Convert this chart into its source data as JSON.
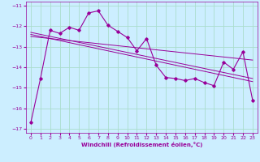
{
  "xlabel": "Windchill (Refroidissement éolien,°C)",
  "background_color": "#cceeff",
  "grid_color": "#aaddcc",
  "line_color": "#990099",
  "xlim": [
    -0.5,
    23.5
  ],
  "ylim": [
    -17.2,
    -10.8
  ],
  "yticks": [
    -17,
    -16,
    -15,
    -14,
    -13,
    -12,
    -11
  ],
  "xticks": [
    0,
    1,
    2,
    3,
    4,
    5,
    6,
    7,
    8,
    9,
    10,
    11,
    12,
    13,
    14,
    15,
    16,
    17,
    18,
    19,
    20,
    21,
    22,
    23
  ],
  "hours": [
    0,
    1,
    2,
    3,
    4,
    5,
    6,
    7,
    8,
    9,
    10,
    11,
    12,
    13,
    14,
    15,
    16,
    17,
    18,
    19,
    20,
    21,
    22,
    23
  ],
  "windchill_main": [
    -16.7,
    -14.55,
    -12.2,
    -12.35,
    -12.05,
    -12.2,
    -11.35,
    -11.25,
    -11.95,
    -12.25,
    -12.55,
    -13.2,
    -12.6,
    -13.9,
    -14.5,
    -14.55,
    -14.65,
    -14.55,
    -14.75,
    -14.9,
    -13.75,
    -14.1,
    -13.25,
    -15.6
  ],
  "trend1_x": [
    0,
    23
  ],
  "trend1_y": [
    -12.5,
    -13.65
  ],
  "trend2_x": [
    0,
    23
  ],
  "trend2_y": [
    -12.3,
    -14.55
  ],
  "trend3_x": [
    0,
    23
  ],
  "trend3_y": [
    -12.4,
    -14.7
  ]
}
